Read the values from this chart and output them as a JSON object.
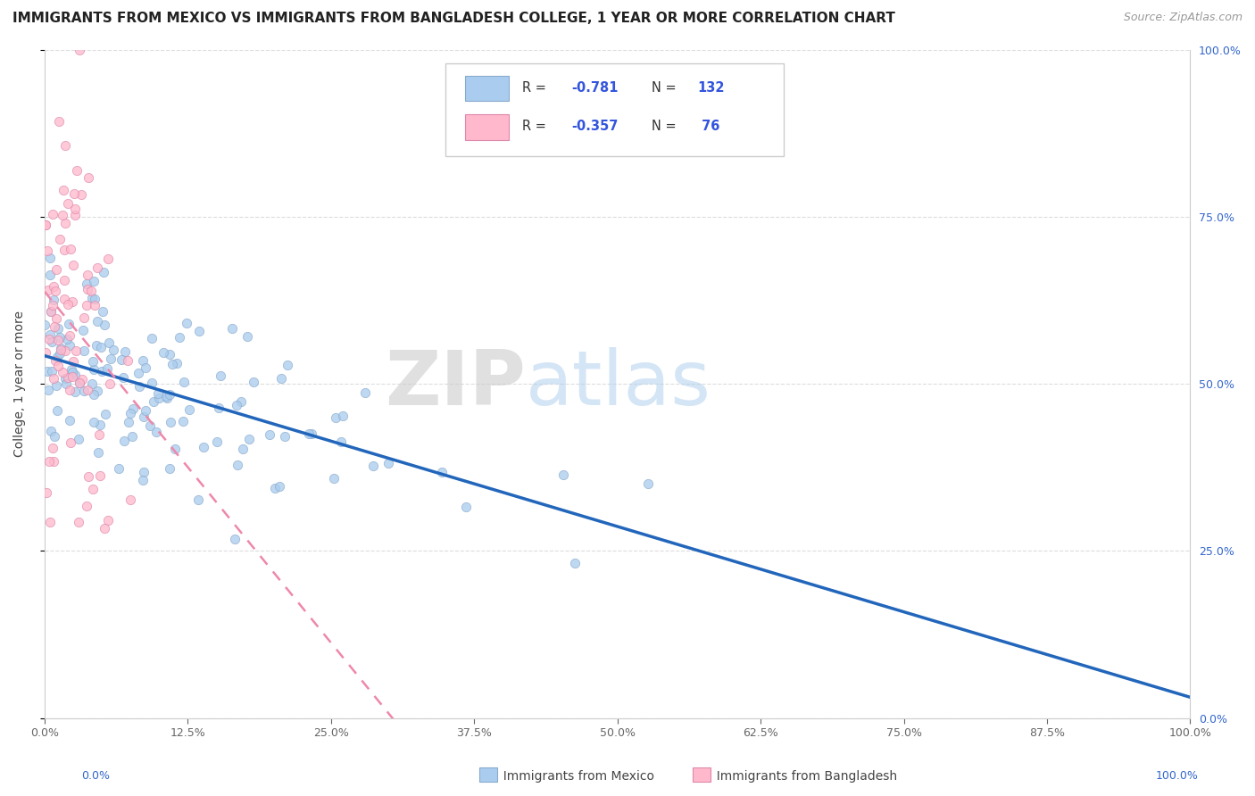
{
  "title": "IMMIGRANTS FROM MEXICO VS IMMIGRANTS FROM BANGLADESH COLLEGE, 1 YEAR OR MORE CORRELATION CHART",
  "source": "Source: ZipAtlas.com",
  "ylabel": "College, 1 year or more",
  "watermark_zip": "ZIP",
  "watermark_atlas": "atlas",
  "xlim": [
    0.0,
    1.0
  ],
  "ylim": [
    0.0,
    1.0
  ],
  "xtick_labels": [
    "0.0%",
    "12.5%",
    "25.0%",
    "37.5%",
    "50.0%",
    "62.5%",
    "75.0%",
    "87.5%",
    "100.0%"
  ],
  "ytick_labels": [
    "0.0%",
    "25.0%",
    "50.0%",
    "75.0%",
    "100.0%"
  ],
  "series": [
    {
      "label": "Immigrants from Mexico",
      "R": -0.781,
      "N": 132,
      "color": "#aaccee",
      "edge_color": "#88aacc",
      "trend_color": "#2266bb",
      "trend_style": "solid",
      "seed": 10
    },
    {
      "label": "Immigrants from Bangladesh",
      "R": -0.357,
      "N": 76,
      "color": "#ffb8cc",
      "edge_color": "#dd88aa",
      "trend_color": "#ee88aa",
      "trend_style": "dashed",
      "seed": 20
    }
  ],
  "legend_R_color": "#3355dd",
  "legend_N_color": "#3355dd",
  "title_fontsize": 11,
  "source_fontsize": 9,
  "tick_color": "#666666",
  "right_tick_color": "#3366cc",
  "grid_color": "#dddddd",
  "grid_linestyle": "--"
}
